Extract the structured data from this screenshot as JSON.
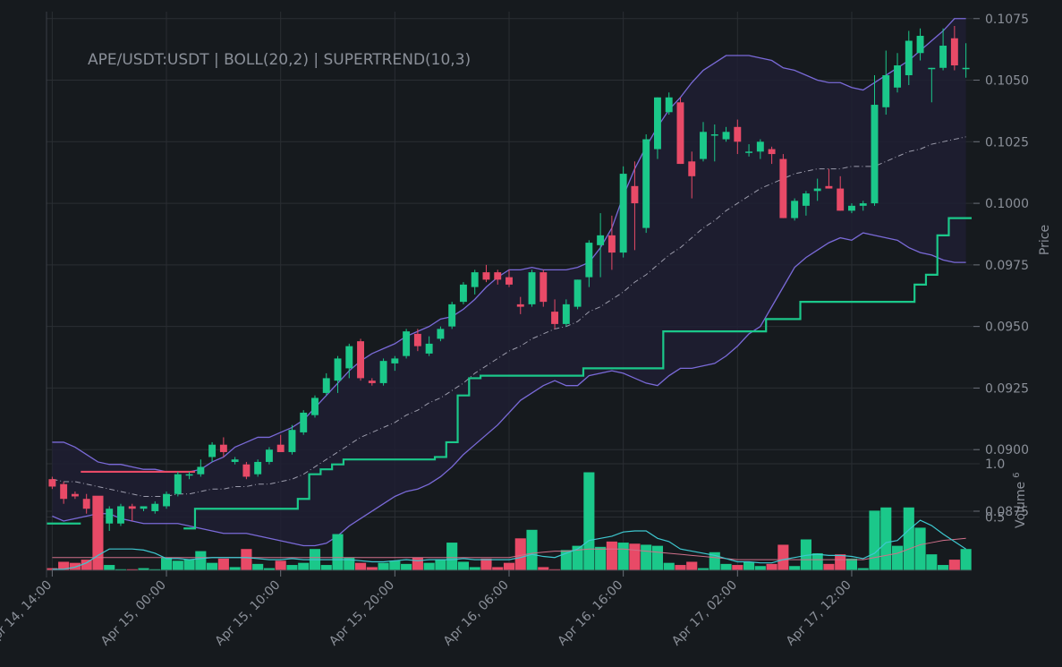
{
  "chart_data": [
    {
      "type": "candlestick",
      "title": "APE/USDT:USDT | BOLL(20,2) | SUPERTREND(10,3)",
      "ylabel": "Price",
      "ylim": [
        0.0851,
        0.1076
      ],
      "y_ticks": [
        "0.0875",
        "0.0900",
        "0.0925",
        "0.0950",
        "0.0975",
        "0.1000",
        "0.1025",
        "0.1050",
        "0.1075"
      ],
      "x_ticks": [
        "Apr 14, 14:00",
        "Apr 15, 00:00",
        "Apr 15, 10:00",
        "Apr 15, 20:00",
        "Apr 16, 06:00",
        "Apr 16, 16:00",
        "Apr 17, 02:00",
        "Apr 17, 12:00"
      ],
      "x_tick_index": [
        0,
        10,
        20,
        30,
        40,
        50,
        60,
        70
      ],
      "candles": [
        [
          0.0888,
          0.0889,
          0.0884,
          0.0885
        ],
        [
          0.0886,
          0.0887,
          0.0878,
          0.088
        ],
        [
          0.0882,
          0.0883,
          0.088,
          0.0881
        ],
        [
          0.088,
          0.0882,
          0.0874,
          0.0876
        ],
        [
          0.0878,
          0.0879,
          0.0864,
          0.0869
        ],
        [
          0.087,
          0.0877,
          0.0867,
          0.0876
        ],
        [
          0.087,
          0.0878,
          0.0869,
          0.0877
        ],
        [
          0.0877,
          0.0878,
          0.0871,
          0.0876
        ],
        [
          0.0876,
          0.0877,
          0.0875,
          0.0877
        ],
        [
          0.0875,
          0.0879,
          0.0874,
          0.0878
        ],
        [
          0.0877,
          0.0883,
          0.0876,
          0.0882
        ],
        [
          0.0882,
          0.0891,
          0.0881,
          0.089
        ],
        [
          0.089,
          0.0891,
          0.0888,
          0.089
        ],
        [
          0.089,
          0.0896,
          0.0889,
          0.0893
        ],
        [
          0.0897,
          0.0903,
          0.0895,
          0.0902
        ],
        [
          0.0902,
          0.0905,
          0.0897,
          0.0899
        ],
        [
          0.0895,
          0.0897,
          0.0894,
          0.0896
        ],
        [
          0.0894,
          0.0895,
          0.0888,
          0.0889
        ],
        [
          0.089,
          0.0896,
          0.0889,
          0.0895
        ],
        [
          0.0895,
          0.0901,
          0.0894,
          0.09
        ],
        [
          0.0902,
          0.0906,
          0.0899,
          0.0899
        ],
        [
          0.0899,
          0.091,
          0.0898,
          0.0908
        ],
        [
          0.0907,
          0.0916,
          0.0906,
          0.0915
        ],
        [
          0.0914,
          0.0922,
          0.0913,
          0.0921
        ],
        [
          0.0923,
          0.0931,
          0.0922,
          0.0929
        ],
        [
          0.0928,
          0.0938,
          0.0923,
          0.0937
        ],
        [
          0.0933,
          0.0943,
          0.0929,
          0.0942
        ],
        [
          0.0944,
          0.0945,
          0.0928,
          0.0929
        ],
        [
          0.0928,
          0.0929,
          0.0926,
          0.0927
        ],
        [
          0.0927,
          0.0937,
          0.0926,
          0.0936
        ],
        [
          0.0935,
          0.0938,
          0.0932,
          0.0937
        ],
        [
          0.0938,
          0.0949,
          0.0937,
          0.0948
        ],
        [
          0.0947,
          0.0949,
          0.094,
          0.0942
        ],
        [
          0.0939,
          0.0946,
          0.0938,
          0.0943
        ],
        [
          0.0945,
          0.095,
          0.0944,
          0.0949
        ],
        [
          0.095,
          0.096,
          0.0949,
          0.0959
        ],
        [
          0.096,
          0.0968,
          0.0959,
          0.0967
        ],
        [
          0.0966,
          0.0973,
          0.0963,
          0.0972
        ],
        [
          0.0972,
          0.0975,
          0.0968,
          0.0969
        ],
        [
          0.0972,
          0.0973,
          0.0967,
          0.0969
        ],
        [
          0.097,
          0.0973,
          0.0966,
          0.0967
        ],
        [
          0.0959,
          0.0962,
          0.0955,
          0.0958
        ],
        [
          0.0959,
          0.0973,
          0.0958,
          0.0972
        ],
        [
          0.0972,
          0.0973,
          0.0958,
          0.096
        ],
        [
          0.0956,
          0.0961,
          0.0949,
          0.0951
        ],
        [
          0.0951,
          0.0961,
          0.095,
          0.0959
        ],
        [
          0.0958,
          0.0969,
          0.0957,
          0.0969
        ],
        [
          0.097,
          0.0985,
          0.0966,
          0.0984
        ],
        [
          0.0983,
          0.0996,
          0.097,
          0.0987
        ],
        [
          0.0987,
          0.0995,
          0.0973,
          0.098
        ],
        [
          0.098,
          0.1015,
          0.0978,
          0.1012
        ],
        [
          0.1007,
          0.1017,
          0.0981,
          0.1
        ],
        [
          0.099,
          0.1028,
          0.0988,
          0.1026
        ],
        [
          0.1022,
          0.1043,
          0.1018,
          0.1043
        ],
        [
          0.1037,
          0.1045,
          0.1036,
          0.1043
        ],
        [
          0.1041,
          0.1043,
          0.1016,
          0.1016
        ],
        [
          0.1017,
          0.1021,
          0.1002,
          0.1011
        ],
        [
          0.1018,
          0.1033,
          0.1017,
          0.1029
        ],
        [
          0.1028,
          0.1032,
          0.1017,
          0.1028
        ],
        [
          0.1026,
          0.1031,
          0.1025,
          0.1029
        ],
        [
          0.1031,
          0.1034,
          0.102,
          0.1025
        ],
        [
          0.1021,
          0.1024,
          0.1019,
          0.1021
        ],
        [
          0.1021,
          0.1026,
          0.1018,
          0.1025
        ],
        [
          0.1022,
          0.1023,
          0.1016,
          0.102
        ],
        [
          0.1018,
          0.102,
          0.0994,
          0.0994
        ],
        [
          0.0994,
          0.1002,
          0.0993,
          0.1001
        ],
        [
          0.0999,
          0.1005,
          0.0995,
          0.1004
        ],
        [
          0.1005,
          0.101,
          0.1001,
          0.1006
        ],
        [
          0.1007,
          0.1014,
          0.1006,
          0.1006
        ],
        [
          0.1006,
          0.1011,
          0.0997,
          0.0997
        ],
        [
          0.0997,
          0.1,
          0.0996,
          0.0999
        ],
        [
          0.0999,
          0.1001,
          0.0997,
          0.1
        ],
        [
          0.1,
          0.1052,
          0.0999,
          0.104
        ],
        [
          0.1039,
          0.1062,
          0.1036,
          0.1052
        ],
        [
          0.1047,
          0.1061,
          0.1045,
          0.1056
        ],
        [
          0.1052,
          0.107,
          0.1048,
          0.1066
        ],
        [
          0.1061,
          0.1071,
          0.1058,
          0.1068
        ],
        [
          0.1055,
          0.1055,
          0.1041,
          0.1055
        ],
        [
          0.1055,
          0.1071,
          0.1054,
          0.1064
        ],
        [
          0.1067,
          0.1072,
          0.1054,
          0.1056
        ],
        [
          0.1055,
          0.1065,
          0.1051,
          0.1055
        ]
      ],
      "boll_upper": [
        0.0903,
        0.0903,
        0.0901,
        0.0898,
        0.0895,
        0.0894,
        0.0894,
        0.0893,
        0.0892,
        0.0892,
        0.0891,
        0.0891,
        0.0891,
        0.0892,
        0.0895,
        0.0897,
        0.0901,
        0.0903,
        0.0905,
        0.0905,
        0.0907,
        0.0909,
        0.0912,
        0.0917,
        0.0922,
        0.0927,
        0.0932,
        0.0936,
        0.0939,
        0.0941,
        0.0943,
        0.0946,
        0.0948,
        0.095,
        0.0953,
        0.0954,
        0.0957,
        0.0961,
        0.0966,
        0.097,
        0.0973,
        0.0973,
        0.0974,
        0.0973,
        0.0973,
        0.0973,
        0.0974,
        0.0976,
        0.0982,
        0.099,
        0.1003,
        0.1014,
        0.1023,
        0.1031,
        0.1038,
        0.1043,
        0.1049,
        0.1054,
        0.1057,
        0.106,
        0.106,
        0.106,
        0.1059,
        0.1058,
        0.1055,
        0.1054,
        0.1052,
        0.105,
        0.1049,
        0.1049,
        0.1047,
        0.1046,
        0.1049,
        0.1052,
        0.1055,
        0.1058,
        0.1062,
        0.1066,
        0.107,
        0.1075,
        0.1075
      ],
      "boll_mid": [
        0.0888,
        0.0887,
        0.0887,
        0.0886,
        0.0885,
        0.0884,
        0.0883,
        0.0882,
        0.0881,
        0.0881,
        0.0881,
        0.0882,
        0.0882,
        0.0883,
        0.0884,
        0.0884,
        0.0885,
        0.0885,
        0.0886,
        0.0886,
        0.0887,
        0.0888,
        0.089,
        0.0893,
        0.0896,
        0.0899,
        0.0902,
        0.0905,
        0.0907,
        0.0909,
        0.0911,
        0.0914,
        0.0916,
        0.0919,
        0.0921,
        0.0924,
        0.0927,
        0.0931,
        0.0934,
        0.0937,
        0.094,
        0.0942,
        0.0945,
        0.0947,
        0.0949,
        0.095,
        0.0952,
        0.0956,
        0.0958,
        0.0961,
        0.0964,
        0.0968,
        0.0971,
        0.0975,
        0.0979,
        0.0982,
        0.0986,
        0.099,
        0.0993,
        0.0997,
        0.1,
        0.1003,
        0.1006,
        0.1008,
        0.101,
        0.1012,
        0.1013,
        0.1014,
        0.1014,
        0.1014,
        0.1015,
        0.1015,
        0.1015,
        0.1017,
        0.1019,
        0.1021,
        0.1022,
        0.1024,
        0.1025,
        0.1026,
        0.1027
      ],
      "boll_lower": [
        0.0873,
        0.0871,
        0.0872,
        0.0873,
        0.0874,
        0.0874,
        0.0872,
        0.0871,
        0.087,
        0.087,
        0.087,
        0.087,
        0.0869,
        0.0868,
        0.0867,
        0.0866,
        0.0866,
        0.0866,
        0.0865,
        0.0864,
        0.0863,
        0.0862,
        0.0861,
        0.0861,
        0.0862,
        0.0865,
        0.0869,
        0.0872,
        0.0875,
        0.0878,
        0.0881,
        0.0883,
        0.0884,
        0.0886,
        0.0889,
        0.0893,
        0.0898,
        0.0902,
        0.0906,
        0.091,
        0.0915,
        0.092,
        0.0923,
        0.0926,
        0.0928,
        0.0926,
        0.0926,
        0.093,
        0.0931,
        0.0932,
        0.0931,
        0.0929,
        0.0927,
        0.0926,
        0.093,
        0.0933,
        0.0933,
        0.0934,
        0.0935,
        0.0938,
        0.0942,
        0.0947,
        0.095,
        0.0958,
        0.0966,
        0.0974,
        0.0978,
        0.0981,
        0.0984,
        0.0986,
        0.0985,
        0.0988,
        0.0987,
        0.0986,
        0.0985,
        0.0982,
        0.098,
        0.0979,
        0.0977,
        0.0976,
        0.0976
      ],
      "supertrend_bear": [
        null,
        null,
        null,
        0.0891,
        0.0891,
        0.0891,
        0.0891,
        0.0891,
        0.0891,
        0.0891,
        0.0891,
        0.0891,
        0.0891,
        null
      ],
      "supertrend_bull": [
        0.087,
        0.087,
        0.087,
        null,
        null,
        null,
        null,
        null,
        null,
        null,
        null,
        null,
        0.0868,
        0.0876,
        0.0876,
        0.0876,
        0.0876,
        0.0876,
        0.0876,
        0.0876,
        0.0876,
        0.0876,
        0.088,
        0.089,
        0.0892,
        0.0894,
        0.0896,
        0.0896,
        0.0896,
        0.0896,
        0.0896,
        0.0896,
        0.0896,
        0.0896,
        0.0897,
        0.0903,
        0.0922,
        0.0929,
        0.093,
        0.093,
        0.093,
        0.093,
        0.093,
        0.093,
        0.093,
        0.093,
        0.093,
        0.0933,
        0.0933,
        0.0933,
        0.0933,
        0.0933,
        0.0933,
        0.0933,
        0.0948,
        0.0948,
        0.0948,
        0.0948,
        0.0948,
        0.0948,
        0.0948,
        0.0948,
        0.0948,
        0.0953,
        0.0953,
        0.0953,
        0.096,
        0.096,
        0.096,
        0.096,
        0.096,
        0.096,
        0.096,
        0.096,
        0.096,
        0.096,
        0.0967,
        0.0971,
        0.0987,
        0.0994,
        0.0994
      ]
    },
    {
      "type": "bar",
      "ylabel": "Volume",
      "ylabel_exponent": "6",
      "ylim": [
        0,
        1.0
      ],
      "y_ticks": [
        "1.0",
        "0.5"
      ],
      "volume": [
        0.02,
        0.08,
        0.07,
        0.1,
        0.7,
        0.05,
        0.01,
        0.01,
        0.02,
        0.01,
        0.12,
        0.09,
        0.1,
        0.18,
        0.07,
        0.11,
        0.03,
        0.2,
        0.06,
        0.02,
        0.09,
        0.05,
        0.07,
        0.2,
        0.05,
        0.34,
        0.12,
        0.07,
        0.03,
        0.07,
        0.09,
        0.06,
        0.12,
        0.07,
        0.1,
        0.26,
        0.08,
        0.03,
        0.11,
        0.03,
        0.07,
        0.3,
        0.38,
        0.03,
        0.01,
        0.19,
        0.23,
        0.92,
        0.22,
        0.27,
        0.26,
        0.25,
        0.24,
        0.23,
        0.07,
        0.05,
        0.08,
        0.02,
        0.17,
        0.06,
        0.05,
        0.08,
        0.04,
        0.06,
        0.24,
        0.04,
        0.29,
        0.16,
        0.06,
        0.15,
        0.11,
        0.02,
        0.56,
        0.59,
        0.23,
        0.59,
        0.4,
        0.15,
        0.05,
        0.1,
        0.2
      ],
      "volume_ma": [
        0.01,
        0.01,
        0.03,
        0.07,
        0.14,
        0.2,
        0.2,
        0.2,
        0.19,
        0.16,
        0.11,
        0.11,
        0.1,
        0.11,
        0.12,
        0.12,
        0.12,
        0.12,
        0.11,
        0.1,
        0.1,
        0.11,
        0.1,
        0.1,
        0.1,
        0.1,
        0.1,
        0.09,
        0.08,
        0.08,
        0.09,
        0.1,
        0.09,
        0.1,
        0.1,
        0.1,
        0.11,
        0.1,
        0.1,
        0.1,
        0.1,
        0.12,
        0.15,
        0.13,
        0.12,
        0.16,
        0.2,
        0.28,
        0.3,
        0.32,
        0.36,
        0.37,
        0.37,
        0.3,
        0.27,
        0.2,
        0.18,
        0.16,
        0.14,
        0.11,
        0.08,
        0.08,
        0.07,
        0.07,
        0.1,
        0.12,
        0.14,
        0.15,
        0.14,
        0.14,
        0.13,
        0.11,
        0.16,
        0.26,
        0.28,
        0.38,
        0.47,
        0.42,
        0.34,
        0.27,
        0.2
      ],
      "volume_ma_long": [
        0.12,
        0.12,
        0.12,
        0.12,
        0.12,
        0.12,
        0.12,
        0.12,
        0.12,
        0.12,
        0.12,
        0.12,
        0.12,
        0.12,
        0.12,
        0.12,
        0.12,
        0.12,
        0.12,
        0.12,
        0.12,
        0.12,
        0.12,
        0.12,
        0.12,
        0.12,
        0.12,
        0.12,
        0.12,
        0.12,
        0.12,
        0.12,
        0.12,
        0.12,
        0.12,
        0.12,
        0.12,
        0.12,
        0.12,
        0.12,
        0.12,
        0.14,
        0.16,
        0.17,
        0.18,
        0.18,
        0.19,
        0.2,
        0.2,
        0.2,
        0.2,
        0.19,
        0.18,
        0.17,
        0.16,
        0.15,
        0.14,
        0.13,
        0.12,
        0.11,
        0.1,
        0.1,
        0.1,
        0.1,
        0.1,
        0.1,
        0.1,
        0.1,
        0.1,
        0.1,
        0.1,
        0.1,
        0.12,
        0.14,
        0.16,
        0.2,
        0.24,
        0.26,
        0.28,
        0.29,
        0.3
      ]
    }
  ],
  "colors": {
    "background": "#161a1e",
    "grid": "#2a2e33",
    "bull": "#1bc88a",
    "bear": "#e84a67",
    "boll": "#7a6ad8",
    "boll_fill": "#1e1e33",
    "boll_mid": "#9a9aaa",
    "text": "#8a8f98",
    "vol_ma": "#3ec8d0",
    "vol_ma_long": "#d0708a"
  }
}
